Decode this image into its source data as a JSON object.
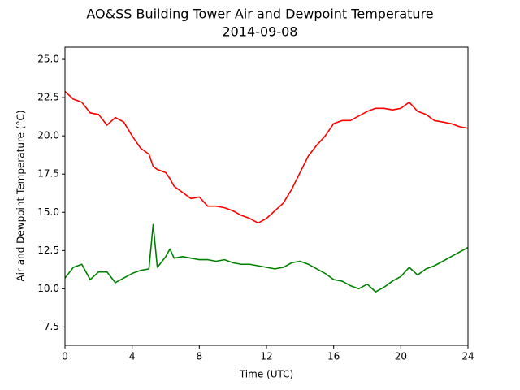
{
  "chart_data": {
    "type": "line",
    "title": "AO&SS Building Tower Air and Dewpoint Temperature",
    "subtitle": "2014-09-08",
    "xlabel": "Time (UTC)",
    "ylabel": "Air and Dewpoint Temperature (°C)",
    "x": [
      0,
      0.5,
      1,
      1.5,
      2,
      2.5,
      3,
      3.5,
      4,
      4.5,
      5,
      5.25,
      5.5,
      6,
      6.25,
      6.5,
      7,
      7.5,
      8,
      8.5,
      9,
      9.5,
      10,
      10.5,
      11,
      11.5,
      12,
      12.5,
      13,
      13.5,
      14,
      14.5,
      15,
      15.5,
      16,
      16.5,
      17,
      17.5,
      18,
      18.5,
      19,
      19.5,
      20,
      20.5,
      21,
      21.5,
      22,
      22.5,
      23,
      23.5,
      24
    ],
    "series": [
      {
        "color": "#ff0000",
        "values": [
          22.9,
          22.4,
          22.2,
          21.5,
          21.4,
          20.7,
          21.2,
          20.9,
          20.0,
          19.2,
          18.8,
          18.0,
          17.8,
          17.6,
          17.2,
          16.7,
          16.3,
          15.9,
          16.0,
          15.4,
          15.4,
          15.3,
          15.1,
          14.8,
          14.6,
          14.3,
          14.6,
          15.1,
          15.6,
          16.5,
          17.6,
          18.7,
          19.4,
          20.0,
          20.8,
          21.0,
          21.0,
          21.3,
          21.6,
          21.8,
          21.8,
          21.7,
          21.8,
          22.2,
          21.6,
          21.4,
          21.0,
          20.9,
          20.8,
          20.6,
          20.5
        ]
      },
      {
        "color": "#008000",
        "values": [
          10.7,
          11.4,
          11.6,
          10.6,
          11.1,
          11.1,
          10.4,
          10.7,
          11.0,
          11.2,
          11.3,
          14.2,
          11.4,
          12.1,
          12.6,
          12.0,
          12.1,
          12.0,
          11.9,
          11.9,
          11.8,
          11.9,
          11.7,
          11.6,
          11.6,
          11.5,
          11.4,
          11.3,
          11.4,
          11.7,
          11.8,
          11.6,
          11.3,
          11.0,
          10.6,
          10.5,
          10.2,
          10.0,
          10.3,
          9.8,
          10.1,
          10.5,
          10.8,
          11.4,
          10.9,
          11.3,
          11.5,
          11.8,
          12.1,
          12.4,
          12.7
        ]
      }
    ],
    "xlim": [
      0,
      24
    ],
    "xticks": [
      0,
      4,
      8,
      12,
      16,
      20,
      24
    ],
    "ylim": [
      6.3,
      25.8
    ],
    "yticks": [
      7.5,
      {
        "value": 10,
        "label": "10.0"
      },
      12.5,
      {
        "value": 15,
        "label": "15.0"
      },
      17.5,
      {
        "value": 20,
        "label": "20.0"
      },
      22.5,
      {
        "value": 25,
        "label": "25.0"
      }
    ]
  }
}
